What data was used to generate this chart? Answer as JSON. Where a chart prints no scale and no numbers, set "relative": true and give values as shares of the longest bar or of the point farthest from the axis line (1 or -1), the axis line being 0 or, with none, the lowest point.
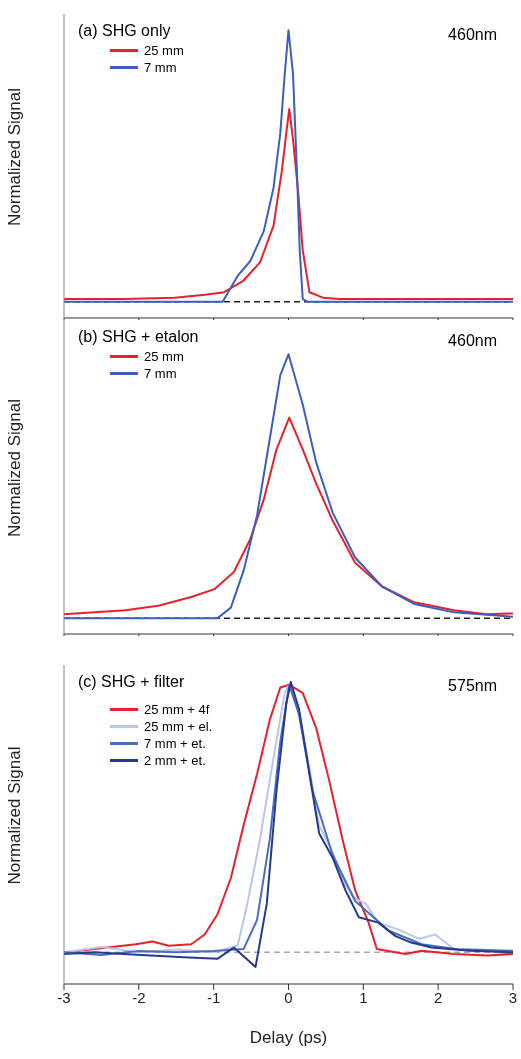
{
  "chart_data": [
    {
      "type": "line",
      "title": "(a) SHG only",
      "annotations": [
        "460nm"
      ],
      "ylabel": "Normalized Signal",
      "relative": true,
      "xlim": [
        -3,
        3
      ],
      "xticks": [
        -3,
        -2,
        -1,
        0,
        1,
        2,
        3
      ],
      "tick_labels": false,
      "legend": "top left",
      "ref_lines": [
        {
          "axis": "y",
          "value": 0,
          "color": "#222222",
          "line_style": "dashed"
        }
      ],
      "series": [
        {
          "name": "25 mm",
          "color": "#e8202a",
          "x": [
            -3,
            -2.2,
            -1.52,
            -1.12,
            -0.86,
            -0.6,
            -0.38,
            -0.2,
            -0.09,
            -0.03,
            0.01,
            0.06,
            0.13,
            0.19,
            0.28,
            0.46,
            0.68,
            1.2,
            2,
            3
          ],
          "values": [
            0.01,
            0.01,
            0.015,
            0.026,
            0.035,
            0.078,
            0.145,
            0.28,
            0.48,
            0.62,
            0.71,
            0.6,
            0.4,
            0.19,
            0.035,
            0.015,
            0.01,
            0.01,
            0.01,
            0.01
          ]
        },
        {
          "name": "7 mm",
          "color": "#3a5fbf",
          "x": [
            -3,
            -2,
            -0.88,
            -0.68,
            -0.51,
            -0.33,
            -0.2,
            -0.11,
            -0.05,
            0,
            0.06,
            0.11,
            0.15,
            0.19,
            0.25,
            1,
            2,
            3
          ],
          "values": [
            0,
            0,
            0,
            0.095,
            0.15,
            0.26,
            0.42,
            0.62,
            0.84,
            1,
            0.84,
            0.5,
            0.19,
            0.01,
            0,
            0,
            0,
            0
          ]
        }
      ]
    },
    {
      "type": "line",
      "title": "(b) SHG + etalon",
      "annotations": [
        "460nm"
      ],
      "ylabel": "Normalized Signal",
      "relative": true,
      "xlim": [
        -3,
        3
      ],
      "xticks": [
        -3,
        -2,
        -1,
        0,
        1,
        2,
        3
      ],
      "tick_labels": false,
      "legend": "top left",
      "ref_lines": [
        {
          "axis": "y",
          "value": 0,
          "color": "#222222",
          "line_style": "dashed"
        }
      ],
      "series": [
        {
          "name": "25 mm",
          "color": "#e8202a",
          "x": [
            -3,
            -2.18,
            -1.74,
            -1.3,
            -0.99,
            -0.73,
            -0.51,
            -0.33,
            -0.16,
            0.01,
            0.19,
            0.37,
            0.59,
            0.89,
            1.25,
            1.68,
            2.21,
            2.65,
            3
          ],
          "values": [
            0.015,
            0.03,
            0.047,
            0.08,
            0.11,
            0.175,
            0.3,
            0.45,
            0.64,
            0.76,
            0.64,
            0.51,
            0.37,
            0.21,
            0.12,
            0.06,
            0.03,
            0.015,
            0.018
          ]
        },
        {
          "name": "7 mm",
          "color": "#3a5fbf",
          "x": [
            -3,
            -2,
            -0.95,
            -0.77,
            -0.6,
            -0.42,
            -0.25,
            -0.11,
            0,
            0.19,
            0.37,
            0.59,
            0.89,
            1.25,
            1.68,
            2.21,
            3
          ],
          "values": [
            0,
            0,
            0,
            0.04,
            0.18,
            0.39,
            0.68,
            0.92,
            1,
            0.81,
            0.59,
            0.4,
            0.23,
            0.12,
            0.054,
            0.022,
            0.005
          ]
        }
      ]
    },
    {
      "type": "line",
      "title": "(c) SHG + filter",
      "annotations": [
        "575nm"
      ],
      "xlabel": "Delay (ps)",
      "ylabel": "Normalized Signal",
      "relative": true,
      "xlim": [
        -3,
        3
      ],
      "xticks": [
        -3,
        -2,
        -1,
        0,
        1,
        2,
        3
      ],
      "tick_labels": "x",
      "legend": "top left",
      "ref_lines": [
        {
          "axis": "y",
          "value": 0,
          "color": "#aaaaaa",
          "line_style": "dashed"
        }
      ],
      "series": [
        {
          "name": "25 mm + 4f",
          "color": "#e8202a",
          "x": [
            -2.97,
            -2.04,
            -1.82,
            -1.6,
            -1.3,
            -1.12,
            -0.95,
            -0.77,
            -0.6,
            -0.42,
            -0.25,
            -0.11,
            0.01,
            0.19,
            0.37,
            0.54,
            0.72,
            0.89,
            1.07,
            1.18,
            1.56,
            1.78,
            2.21,
            2.65,
            3
          ],
          "values": [
            0,
            0.03,
            0.04,
            0.024,
            0.03,
            0.066,
            0.14,
            0.275,
            0.47,
            0.66,
            0.86,
            0.98,
            0.99,
            0.96,
            0.83,
            0.64,
            0.42,
            0.23,
            0.11,
            0.012,
            -0.006,
            0.006,
            -0.006,
            -0.012,
            -0.006
          ]
        },
        {
          "name": "25 mm + el.",
          "color": "#b8c8ea",
          "x": [
            -3,
            -2.5,
            -2,
            -1.5,
            -1,
            -0.68,
            -0.55,
            -0.38,
            -0.2,
            -0.05,
            0.01,
            0.14,
            0.28,
            0.41,
            0.59,
            0.76,
            0.89,
            1.03,
            1.2,
            1.47,
            1.75,
            1.96,
            2.21,
            2.6,
            3
          ],
          "values": [
            0,
            0.02,
            0,
            0.01,
            0,
            0.024,
            0.18,
            0.42,
            0.72,
            0.96,
            0.99,
            0.9,
            0.68,
            0.47,
            0.37,
            0.25,
            0.2,
            0.18,
            0.11,
            0.084,
            0.05,
            0.066,
            0.012,
            0.01,
            0
          ]
        },
        {
          "name": "7 mm + et.",
          "color": "#4a6cc0",
          "x": [
            -3,
            -2.5,
            -2,
            -1.5,
            -1,
            -0.6,
            -0.42,
            -0.25,
            -0.11,
            0.01,
            0.14,
            0.32,
            0.59,
            0.89,
            1.34,
            1.78,
            2.3,
            3
          ],
          "values": [
            0,
            -0.01,
            0.005,
            0,
            0.005,
            0.012,
            0.12,
            0.42,
            0.78,
            0.99,
            0.88,
            0.6,
            0.36,
            0.19,
            0.08,
            0.03,
            0.01,
            0.006
          ]
        },
        {
          "name": "2 mm + et.",
          "color": "#243a8c",
          "x": [
            -3,
            -2.6,
            -2.2,
            -1.84,
            -1.4,
            -0.95,
            -0.73,
            -0.44,
            -0.29,
            -0.16,
            -0.03,
            0.03,
            0.14,
            0.28,
            0.41,
            0.59,
            0.76,
            0.94,
            1.2,
            1.43,
            1.64,
            1.91,
            2.43,
            3
          ],
          "values": [
            -0.006,
            0,
            -0.006,
            -0.012,
            -0.018,
            -0.024,
            0.018,
            -0.054,
            0.18,
            0.6,
            0.92,
            1,
            0.9,
            0.66,
            0.44,
            0.35,
            0.23,
            0.13,
            0.11,
            0.06,
            0.036,
            0.018,
            0.006,
            0
          ]
        }
      ]
    }
  ]
}
